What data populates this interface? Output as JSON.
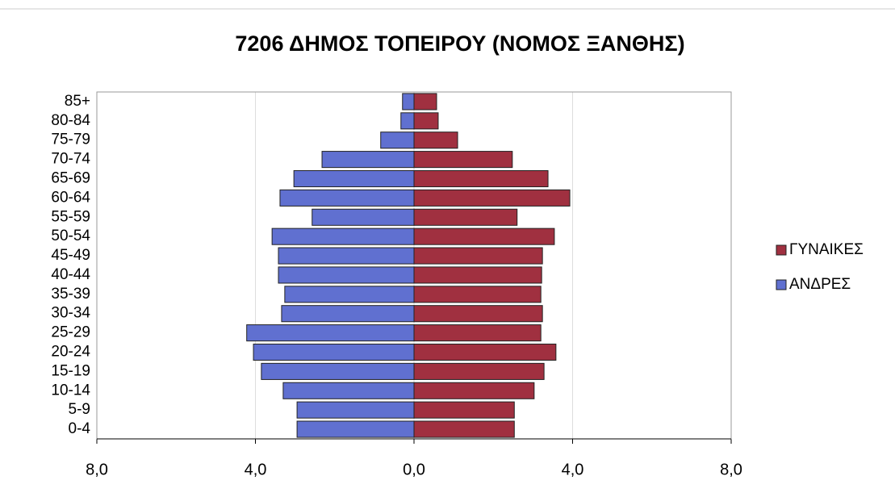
{
  "chart_data": {
    "type": "pyramid",
    "title": "7206 ΔΗΜΟΣ ΤΟΠΕΙΡΟΥ (ΝΟΜΟΣ ΞΑΝΘΗΣ)",
    "categories": [
      "0-4",
      "5-9",
      "10-14",
      "15-19",
      "20-24",
      "25-29",
      "30-34",
      "35-39",
      "40-44",
      "45-49",
      "50-54",
      "55-59",
      "60-64",
      "65-69",
      "70-74",
      "75-79",
      "80-84",
      "85+"
    ],
    "series": [
      {
        "name": "ΓΥΝΑΙΚΕΣ",
        "color": "#a03040",
        "values": [
          2.53,
          2.53,
          3.03,
          3.28,
          3.58,
          3.2,
          3.24,
          3.2,
          3.22,
          3.24,
          3.54,
          2.6,
          3.93,
          3.38,
          2.48,
          1.1,
          0.61,
          0.57
        ]
      },
      {
        "name": "ΑΝΔΡΕΣ",
        "color": "#6070d0",
        "values": [
          -2.95,
          -2.95,
          -3.3,
          -3.85,
          -4.05,
          -4.22,
          -3.34,
          -3.26,
          -3.42,
          -3.42,
          -3.58,
          -2.57,
          -3.38,
          -3.03,
          -2.32,
          -0.84,
          -0.33,
          -0.29
        ]
      }
    ],
    "xlim": [
      -8,
      8
    ],
    "xticks": [
      {
        "value": -8,
        "label": "8,0"
      },
      {
        "value": -4,
        "label": "4,0"
      },
      {
        "value": 0,
        "label": "0,0"
      },
      {
        "value": 4,
        "label": "4,0"
      },
      {
        "value": 8,
        "label": "8,0"
      }
    ],
    "grid": true,
    "legend": "right"
  }
}
